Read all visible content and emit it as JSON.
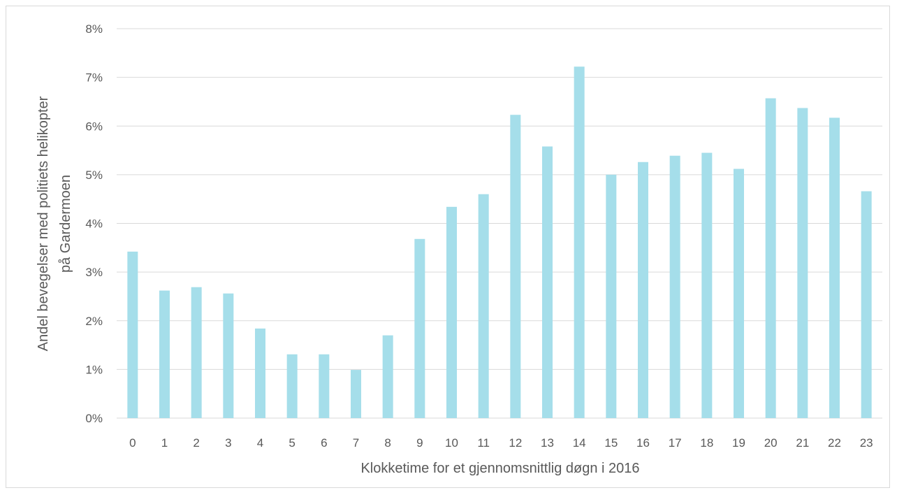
{
  "chart_data": {
    "type": "bar",
    "title": "",
    "xlabel": "Klokketime for et gjennomsnittlig døgn i 2016",
    "ylabel_line1": "Andel bevegelser med politiets helikopter",
    "ylabel_line2": "på Gardermoen",
    "categories": [
      "0",
      "1",
      "2",
      "3",
      "4",
      "5",
      "6",
      "7",
      "8",
      "9",
      "10",
      "11",
      "12",
      "13",
      "14",
      "15",
      "16",
      "17",
      "18",
      "19",
      "20",
      "21",
      "22",
      "23"
    ],
    "values": [
      3.42,
      2.62,
      2.69,
      2.56,
      1.84,
      1.31,
      1.31,
      0.99,
      1.7,
      3.68,
      4.34,
      4.6,
      6.23,
      5.58,
      7.22,
      5.0,
      5.26,
      5.39,
      5.45,
      5.12,
      6.57,
      6.37,
      6.17,
      4.66
    ],
    "unit": "%",
    "ylim": [
      0,
      8
    ],
    "yticks": [
      "0%",
      "1%",
      "2%",
      "3%",
      "4%",
      "5%",
      "6%",
      "7%",
      "8%"
    ],
    "grid": true,
    "legend": "none",
    "colors": {
      "bar": "#a5deea",
      "grid": "#d9d9d9",
      "text": "#595959"
    }
  }
}
